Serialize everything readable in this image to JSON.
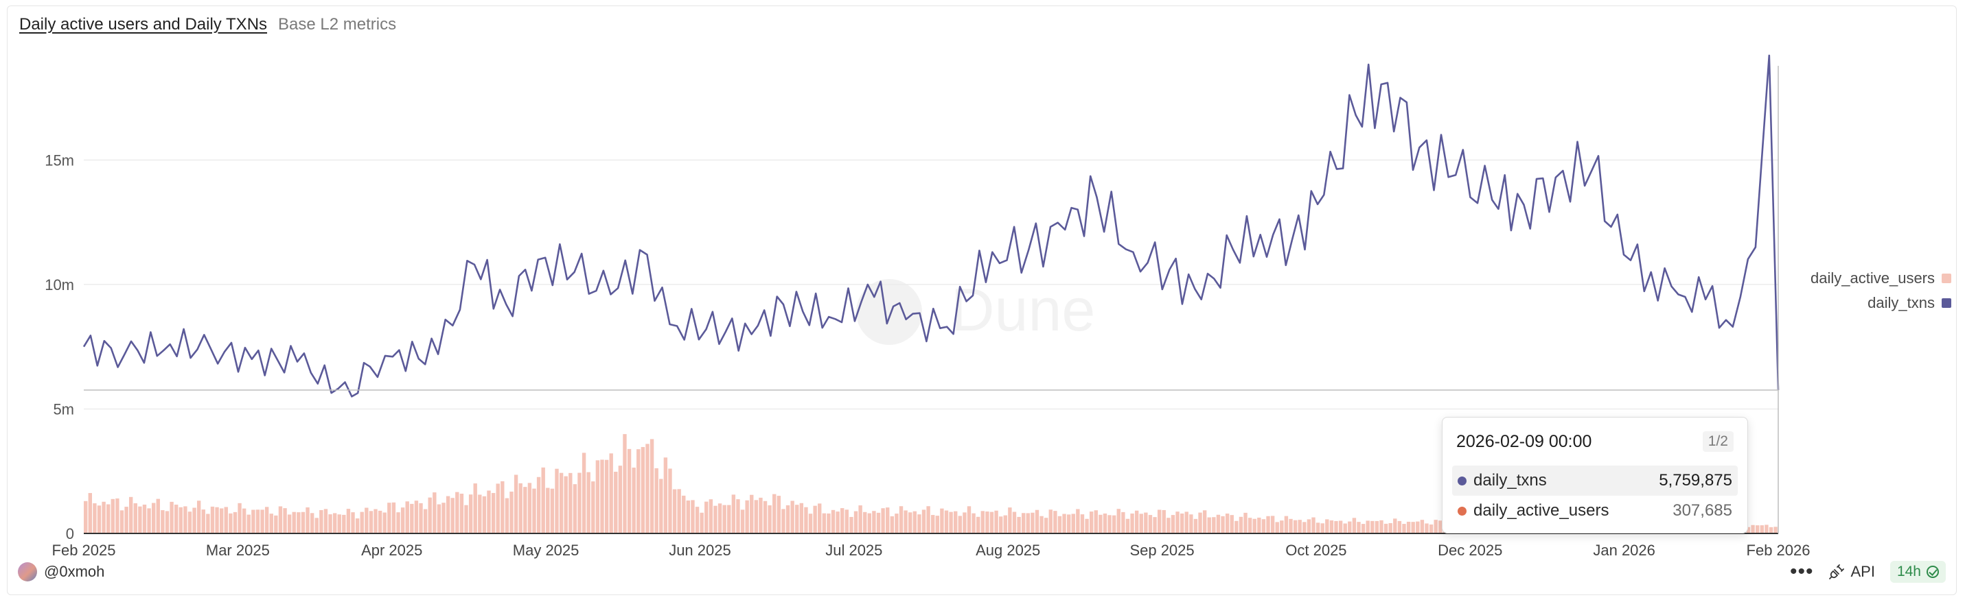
{
  "header": {
    "title": "Daily active users and Daily TXNs",
    "subtitle": "Base L2 metrics"
  },
  "watermark": "Dune",
  "legend": [
    {
      "label": "daily_active_users",
      "color": "#f5c4b8"
    },
    {
      "label": "daily_txns",
      "color": "#5b5a99"
    }
  ],
  "tooltip": {
    "date": "2026-02-09 00:00",
    "page": "1/2",
    "rows": [
      {
        "name": "daily_txns",
        "value": "5,759,875",
        "color": "#5b5a99"
      },
      {
        "name": "daily_active_users",
        "value": "307,685",
        "color": "#e07050"
      }
    ]
  },
  "footer": {
    "author": "@0xmoh",
    "menu_label": "•••",
    "api_label": "API",
    "refresh": "14h"
  },
  "chart_data": {
    "type": "line",
    "x_tick_labels": [
      "Feb 2025",
      "Mar 2025",
      "Apr 2025",
      "May 2025",
      "Jun 2025",
      "Jul 2025",
      "Aug 2025",
      "Sep 2025",
      "Oct 2025",
      "Dec 2025",
      "Jan 2026",
      "Feb 2026"
    ],
    "x_range": [
      "2025-02-01",
      "2026-02-09"
    ],
    "y_tick_labels": [
      "0",
      "5m",
      "10m",
      "15m"
    ],
    "ylim": [
      0,
      19500000
    ],
    "grid": "horizontal",
    "legend_position": "right",
    "series": [
      {
        "name": "daily_txns",
        "type": "line",
        "color": "#5b5a99",
        "x": [
          "2025-02-01",
          "2025-02-10",
          "2025-02-20",
          "2025-03-01",
          "2025-03-10",
          "2025-03-20",
          "2025-04-01",
          "2025-04-05",
          "2025-04-10",
          "2025-04-20",
          "2025-04-28",
          "2025-05-05",
          "2025-05-12",
          "2025-05-20",
          "2025-05-28",
          "2025-06-05",
          "2025-06-10",
          "2025-06-18",
          "2025-06-28",
          "2025-07-05",
          "2025-07-15",
          "2025-07-25",
          "2025-08-01",
          "2025-08-10",
          "2025-08-20",
          "2025-08-28",
          "2025-09-05",
          "2025-09-12",
          "2025-09-20",
          "2025-09-28",
          "2025-10-05",
          "2025-10-12",
          "2025-10-18",
          "2025-10-25",
          "2025-11-01",
          "2025-11-08",
          "2025-11-15",
          "2025-11-22",
          "2025-11-30",
          "2025-12-08",
          "2025-12-15",
          "2025-12-22",
          "2025-12-30",
          "2026-01-06",
          "2026-01-12",
          "2026-01-18",
          "2026-01-24",
          "2026-01-30",
          "2026-02-04",
          "2026-02-07",
          "2026-02-09"
        ],
        "values": [
          7500000,
          7200000,
          7600000,
          7400000,
          7000000,
          6900000,
          5500000,
          6700000,
          7100000,
          7200000,
          10800000,
          9200000,
          11000000,
          10500000,
          9600000,
          11200000,
          8400000,
          8200000,
          8000000,
          9200000,
          8700000,
          9500000,
          8600000,
          8300000,
          11300000,
          11400000,
          12200000,
          13500000,
          11300000,
          10600000,
          9400000,
          11400000,
          12000000,
          11800000,
          13600000,
          16800000,
          18100000,
          15500000,
          14400000,
          13400000,
          13200000,
          14300000,
          14600000,
          11200000,
          10500000,
          9600000,
          9400000,
          8300000,
          11500000,
          19200000,
          5759875
        ]
      },
      {
        "name": "daily_active_users",
        "type": "bar",
        "color": "#f5c4b8",
        "x": [
          "2025-02-01",
          "2025-03-01",
          "2025-04-01",
          "2025-04-28",
          "2025-05-20",
          "2025-06-05",
          "2025-06-15",
          "2025-07-01",
          "2025-07-15",
          "2025-08-01",
          "2025-09-01",
          "2025-10-01",
          "2025-11-01",
          "2025-12-01",
          "2026-01-01",
          "2026-02-09"
        ],
        "values": [
          1300000,
          1000000,
          800000,
          1600000,
          2400000,
          3500000,
          1100000,
          1400000,
          900000,
          900000,
          800000,
          800000,
          500000,
          450000,
          400000,
          307685
        ]
      }
    ]
  }
}
